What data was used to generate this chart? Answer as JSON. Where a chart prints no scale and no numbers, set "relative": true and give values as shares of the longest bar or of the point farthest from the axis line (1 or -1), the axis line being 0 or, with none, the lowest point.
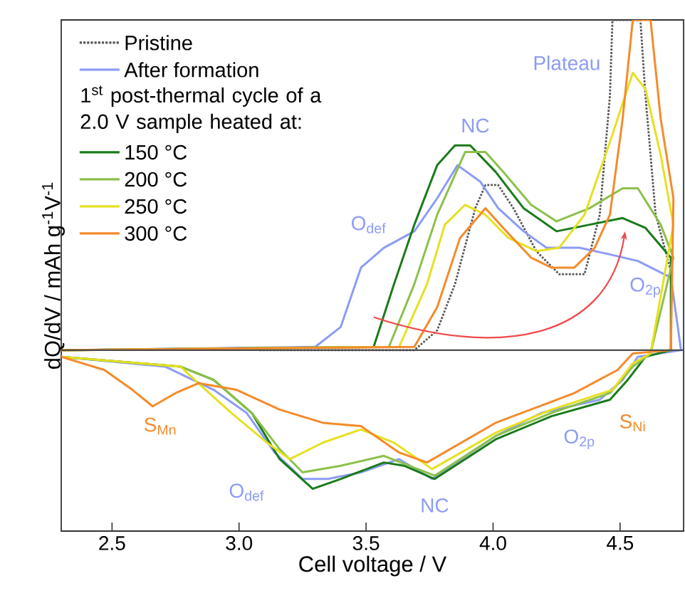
{
  "chart_data": {
    "type": "line",
    "relative": true,
    "xlabel": "Cell voltage / V",
    "ylabel": "dQ/dV / mAh g$^{-1}$V$^{-1}$",
    "legend_title": "1$^{st}$ post-thermal cycle of a 2.0 V sample heated at:",
    "legend": "top left",
    "tick_labels": "x",
    "grid": false,
    "xlim": [
      2.3,
      4.75
    ],
    "xticks": [
      2.5,
      {
        "value": 3.0,
        "label": "3.0"
      },
      3.5,
      {
        "value": 4.0,
        "label": "4.0"
      },
      4.5
    ],
    "series": [
      {
        "name": "Pristine",
        "color": "#555555",
        "line_style": "dotted",
        "x": [
          3.08,
          3.69,
          3.78,
          3.85,
          3.93,
          3.97,
          4.02,
          4.08,
          4.17,
          4.26,
          4.36,
          4.42,
          4.46,
          4.47,
          4.58,
          4.6,
          4.64,
          4.7
        ],
        "values": [
          0,
          0,
          0.06,
          0.2,
          0.43,
          0.5,
          0.5,
          0.43,
          0.3,
          0.23,
          0.23,
          0.41,
          0.77,
          1.0,
          1.0,
          0.77,
          0.41,
          0.24
        ]
      },
      {
        "name": "After formation",
        "color": "#8c9cf5",
        "x": [
          2.3,
          3.3,
          3.4,
          3.48,
          3.57,
          3.69,
          3.78,
          3.86,
          3.95,
          4.02,
          4.12,
          4.21,
          4.34,
          4.46,
          4.57,
          4.7,
          4.74,
          4.57,
          4.51,
          4.42,
          4.19,
          4.01,
          3.76,
          3.63,
          3.48,
          3.35,
          3.25,
          3.14,
          3.03,
          2.9,
          2.71,
          2.3
        ],
        "values": [
          0,
          0.01,
          0.07,
          0.25,
          0.31,
          0.36,
          0.46,
          0.56,
          0.51,
          0.43,
          0.36,
          0.31,
          0.31,
          0.29,
          0.27,
          0.22,
          0,
          -0.02,
          -0.09,
          -0.15,
          -0.19,
          -0.26,
          -0.39,
          -0.33,
          -0.37,
          -0.39,
          -0.39,
          -0.31,
          -0.19,
          -0.12,
          -0.05,
          -0.02
        ]
      },
      {
        "name": "150 °C",
        "color": "#1a7a1a",
        "x": [
          2.3,
          3.53,
          3.61,
          3.69,
          3.78,
          3.85,
          3.91,
          4.01,
          4.12,
          4.25,
          4.38,
          4.51,
          4.6,
          4.7,
          4.7,
          4.6,
          4.53,
          4.46,
          4.23,
          4.01,
          3.77,
          3.65,
          3.57,
          3.4,
          3.29,
          3.16,
          3.05,
          2.9,
          2.77,
          2.3
        ],
        "values": [
          0,
          0.01,
          0.2,
          0.38,
          0.56,
          0.62,
          0.62,
          0.54,
          0.43,
          0.36,
          0.38,
          0.4,
          0.37,
          0.28,
          0,
          -0.02,
          -0.09,
          -0.15,
          -0.2,
          -0.27,
          -0.39,
          -0.35,
          -0.34,
          -0.39,
          -0.42,
          -0.33,
          -0.19,
          -0.09,
          -0.05,
          -0.02
        ]
      },
      {
        "name": "200 °C",
        "color": "#8cc04a",
        "x": [
          2.3,
          3.59,
          3.69,
          3.78,
          3.89,
          3.97,
          4.04,
          4.15,
          4.25,
          4.38,
          4.51,
          4.57,
          4.66,
          4.71,
          4.62,
          4.55,
          4.46,
          4.23,
          4.01,
          3.77,
          3.57,
          3.4,
          3.25,
          3.16,
          3.05,
          2.9,
          2.77,
          2.3
        ],
        "values": [
          0,
          0.01,
          0.2,
          0.41,
          0.6,
          0.6,
          0.54,
          0.44,
          0.39,
          0.43,
          0.49,
          0.49,
          0.38,
          0.28,
          -0.01,
          -0.05,
          -0.13,
          -0.19,
          -0.26,
          -0.38,
          -0.32,
          -0.35,
          -0.37,
          -0.3,
          -0.19,
          -0.09,
          -0.05,
          -0.02
        ]
      },
      {
        "name": "250 °C",
        "color": "#e6e020",
        "x": [
          2.3,
          3.63,
          3.74,
          3.81,
          3.89,
          3.97,
          4.06,
          4.17,
          4.26,
          4.36,
          4.46,
          4.55,
          4.6,
          4.66,
          4.71,
          4.62,
          4.55,
          4.47,
          4.23,
          4.01,
          3.76,
          3.61,
          3.48,
          3.33,
          3.2,
          3.11,
          2.97,
          2.84,
          2.77,
          2.3
        ],
        "values": [
          0,
          0.01,
          0.2,
          0.38,
          0.44,
          0.41,
          0.34,
          0.3,
          0.31,
          0.41,
          0.63,
          0.84,
          0.79,
          0.59,
          0.38,
          -0.01,
          -0.04,
          -0.12,
          -0.18,
          -0.25,
          -0.36,
          -0.28,
          -0.24,
          -0.28,
          -0.33,
          -0.28,
          -0.19,
          -0.1,
          -0.05,
          -0.02
        ]
      },
      {
        "name": "300 °C",
        "color": "#f58a2a",
        "x": [
          2.3,
          3.69,
          3.78,
          3.87,
          3.97,
          4.04,
          4.15,
          4.23,
          4.32,
          4.4,
          4.46,
          4.51,
          4.55,
          4.62,
          4.66,
          4.71,
          4.7,
          4.55,
          4.49,
          4.32,
          4.01,
          3.74,
          3.63,
          3.48,
          3.33,
          3.16,
          2.99,
          2.84,
          2.75,
          2.66,
          2.58,
          2.47,
          2.3
        ],
        "values": [
          0,
          0.01,
          0.13,
          0.34,
          0.43,
          0.37,
          0.28,
          0.25,
          0.25,
          0.31,
          0.41,
          0.7,
          1.0,
          1.0,
          0.7,
          0.46,
          0,
          -0.01,
          -0.06,
          -0.13,
          -0.22,
          -0.34,
          -0.31,
          -0.23,
          -0.22,
          -0.18,
          -0.12,
          -0.1,
          -0.13,
          -0.17,
          -0.12,
          -0.06,
          -0.02
        ]
      }
    ],
    "annotations": [
      "O$_{def}$",
      "NC",
      "Plateau",
      "O$_{2p}$",
      "S$_{Mn}$",
      "O$_{def}$",
      "NC",
      "O$_{2p}$",
      "S$_{Ni}$"
    ]
  }
}
